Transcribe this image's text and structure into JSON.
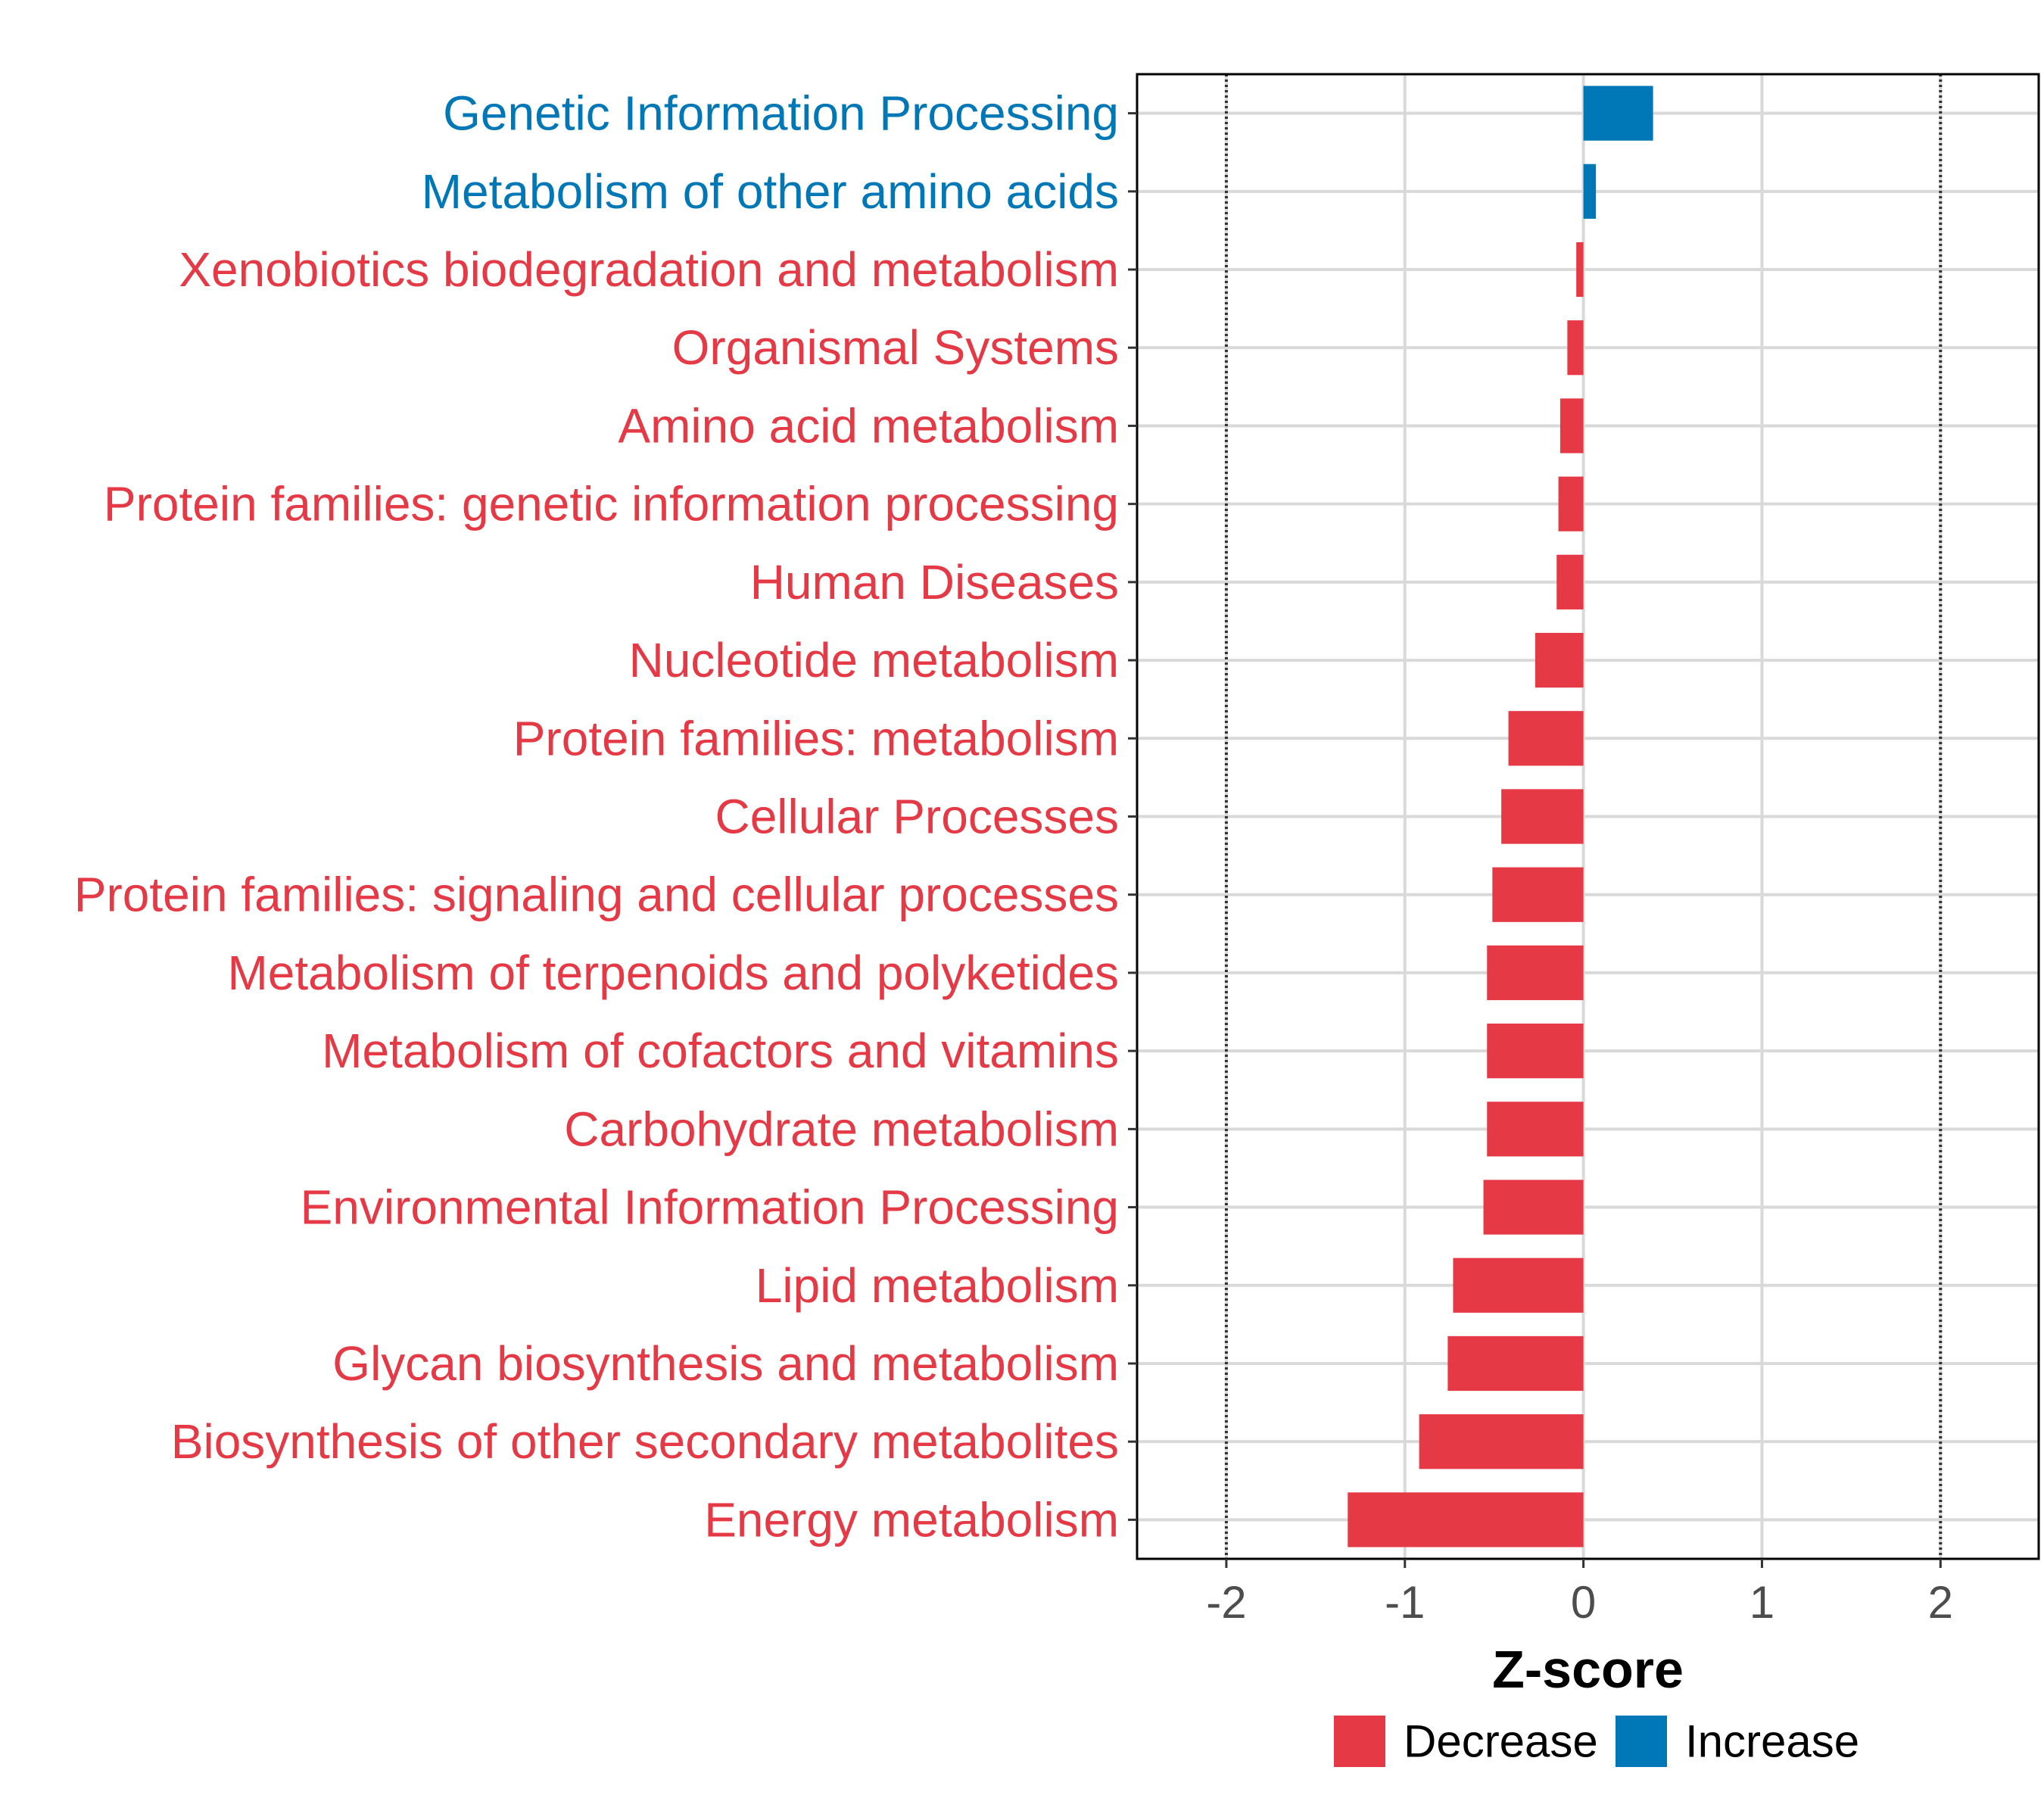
{
  "chart_data": {
    "type": "bar",
    "orientation": "horizontal",
    "xlabel": "Z-score",
    "xlim": [
      -2.5,
      2.55
    ],
    "xticks": [
      -2,
      -1,
      0,
      1,
      2
    ],
    "xtick_labels": [
      "-2",
      "-1",
      "0",
      "1",
      "2"
    ],
    "reference_lines": [
      -2,
      2
    ],
    "grid": true,
    "categories": [
      "Genetic Information Processing",
      "Metabolism of other amino acids",
      "Xenobiotics biodegradation and metabolism",
      "Organismal Systems",
      "Amino acid metabolism",
      "Protein families: genetic information processing",
      "Human Diseases",
      "Nucleotide metabolism",
      "Protein families: metabolism",
      "Cellular Processes",
      "Protein families: signaling and cellular processes",
      "Metabolism of terpenoids and polyketides",
      "Metabolism of cofactors and vitamins",
      "Carbohydrate metabolism",
      "Environmental Information Processing",
      "Lipid metabolism",
      "Glycan biosynthesis and metabolism",
      "Biosynthesis of other secondary metabolites",
      "Energy metabolism"
    ],
    "values": [
      0.39,
      0.07,
      -0.04,
      -0.09,
      -0.13,
      -0.14,
      -0.15,
      -0.27,
      -0.42,
      -0.46,
      -0.51,
      -0.54,
      -0.54,
      -0.54,
      -0.56,
      -0.73,
      -0.76,
      -0.92,
      -1.32
    ],
    "direction": [
      "Increase",
      "Increase",
      "Decrease",
      "Decrease",
      "Decrease",
      "Decrease",
      "Decrease",
      "Decrease",
      "Decrease",
      "Decrease",
      "Decrease",
      "Decrease",
      "Decrease",
      "Decrease",
      "Decrease",
      "Decrease",
      "Decrease",
      "Decrease",
      "Decrease"
    ],
    "legend": {
      "position": "bottom",
      "entries": [
        {
          "label": "Decrease",
          "color": "#e63946"
        },
        {
          "label": "Increase",
          "color": "#0077b6"
        }
      ]
    },
    "colors": {
      "Decrease": "#e63946",
      "Increase": "#0077b6",
      "grid": "#d9d9d9",
      "axis": "#000000",
      "ref_line": "#333333"
    }
  }
}
